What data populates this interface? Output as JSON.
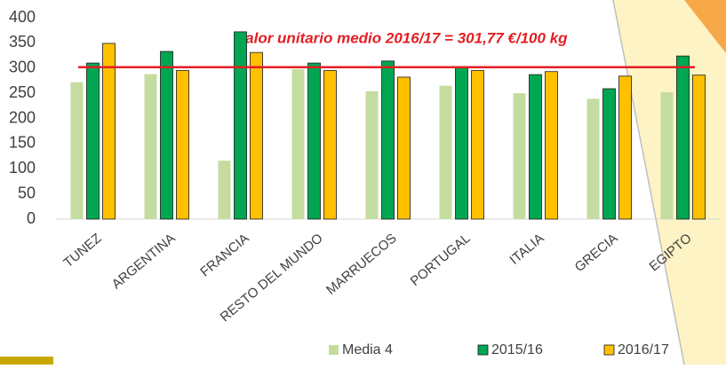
{
  "chart_data": {
    "type": "bar",
    "annotation": "Valor unitario medio 2016/17 = 301,77 €/100 kg",
    "reference_value": 301.77,
    "reference_color": "#e31e24",
    "categories": [
      "TUNEZ",
      "ARGENTINA",
      "FRANCIA",
      "RESTO DEL MUNDO",
      "MARRUECOS",
      "PORTUGAL",
      "ITALIA",
      "GRECIA",
      "EGIPTO"
    ],
    "series": [
      {
        "name": "Media 4",
        "color": "#c5dca0",
        "values": [
          272,
          288,
          116,
          298,
          254,
          265,
          250,
          239,
          252
        ]
      },
      {
        "name": "2015/16",
        "color": "#00a651",
        "values": [
          310,
          333,
          372,
          310,
          314,
          303,
          287,
          259,
          324
        ]
      },
      {
        "name": "2016/17",
        "color": "#ffc000",
        "values": [
          349,
          295,
          331,
          295,
          282,
          295,
          293,
          284,
          286
        ]
      }
    ],
    "ylim": [
      0,
      400
    ],
    "yticks": [
      0,
      50,
      100,
      150,
      200,
      250,
      300,
      350,
      400
    ],
    "legend": "bottom"
  }
}
